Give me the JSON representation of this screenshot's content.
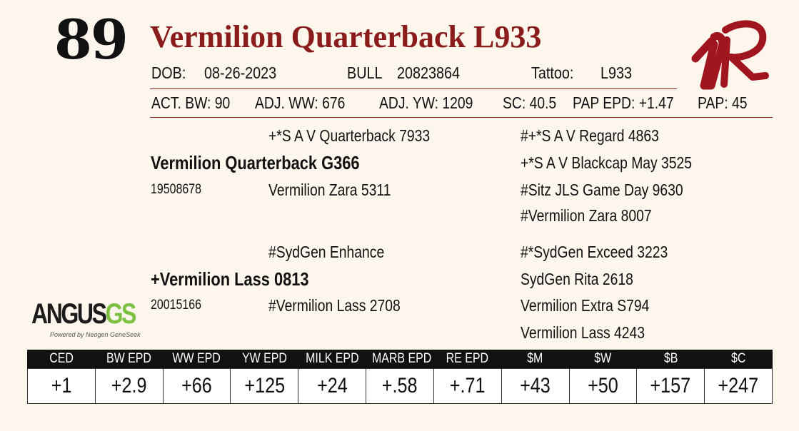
{
  "lot_number": "89",
  "animal_name": "Vermilion Quarterback L933",
  "info": {
    "dob_label": "DOB:",
    "dob": "08-26-2023",
    "sex": "BULL",
    "reg": "20823864",
    "tattoo_label": "Tattoo:",
    "tattoo": "L933"
  },
  "performance": {
    "act_bw": "ACT. BW: 90",
    "adj_ww": "ADJ. WW: 676",
    "adj_yw": "ADJ. YW: 1209",
    "sc": "SC: 40.5",
    "pap_epd": "PAP EPD: +1.47",
    "pap": "PAP: 45"
  },
  "pedigree": {
    "sire": "Vermilion Quarterback G366",
    "sire_reg": "19508678",
    "sire_sire": "+*S A V Quarterback 7933",
    "sire_dam": "Vermilion Zara 5311",
    "sire_sire_sire": "#+*S A V Regard 4863",
    "sire_sire_dam": "+*S A V Blackcap May 3525",
    "sire_dam_sire": "#Sitz JLS Game Day 9630",
    "sire_dam_dam": "#Vermilion Zara 8007",
    "dam": "+Vermilion Lass 0813",
    "dam_reg": "20015166",
    "dam_sire": "#SydGen Enhance",
    "dam_dam": "#Vermilion Lass 2708",
    "dam_sire_sire": "#*SydGen Exceed 3223",
    "dam_sire_dam": "SydGen Rita 2618",
    "dam_dam_sire": "Vermilion Extra S794",
    "dam_dam_dam": "Vermilion Lass 4243"
  },
  "logo": {
    "angus_word": "ANGUS",
    "angus_gs": "GS",
    "angus_tagline": "Powered by Neogen GeneSeek"
  },
  "epd_table": {
    "headers": [
      "CED",
      "BW EPD",
      "WW EPD",
      "YW EPD",
      "MILK EPD",
      "MARB EPD",
      "RE EPD",
      "$M",
      "$W",
      "$B",
      "$C"
    ],
    "values": [
      "+1",
      "+2.9",
      "+66",
      "+125",
      "+24",
      "+.58",
      "+.71",
      "+43",
      "+50",
      "+157",
      "+247"
    ]
  },
  "colors": {
    "brand_red": "#8b1c1c",
    "angus_green": "#7cc142"
  }
}
